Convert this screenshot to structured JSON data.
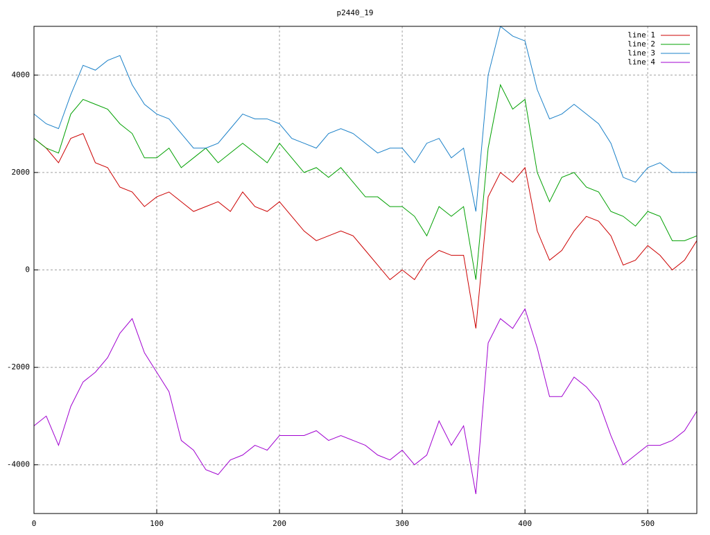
{
  "chart_data": {
    "type": "line",
    "title": "p2440_19",
    "x": [
      0,
      10,
      20,
      30,
      40,
      50,
      60,
      70,
      80,
      90,
      100,
      110,
      120,
      130,
      140,
      150,
      160,
      170,
      180,
      190,
      200,
      210,
      220,
      230,
      240,
      250,
      260,
      270,
      280,
      290,
      300,
      310,
      320,
      330,
      340,
      350,
      360,
      370,
      380,
      390,
      400,
      410,
      420,
      430,
      440,
      450,
      460,
      470,
      480,
      490,
      500,
      510,
      520,
      530,
      540
    ],
    "series": [
      {
        "name": "line 1",
        "color": "#cc0000",
        "values": [
          2700,
          2500,
          2200,
          2700,
          2800,
          2200,
          2100,
          1700,
          1600,
          1300,
          1500,
          1600,
          1400,
          1200,
          1300,
          1400,
          1200,
          1600,
          1300,
          1200,
          1400,
          1100,
          800,
          600,
          700,
          800,
          700,
          400,
          100,
          -200,
          0,
          -200,
          200,
          400,
          300,
          300,
          -1200,
          1500,
          2000,
          1800,
          2100,
          800,
          200,
          400,
          800,
          1100,
          1000,
          700,
          100,
          200,
          500,
          300,
          0,
          200,
          600
        ]
      },
      {
        "name": "line 2",
        "color": "#00a000",
        "values": [
          2700,
          2500,
          2400,
          3200,
          3500,
          3400,
          3300,
          3000,
          2800,
          2300,
          2300,
          2500,
          2100,
          2300,
          2500,
          2200,
          2400,
          2600,
          2400,
          2200,
          2600,
          2300,
          2000,
          2100,
          1900,
          2100,
          1800,
          1500,
          1500,
          1300,
          1300,
          1100,
          700,
          1300,
          1100,
          1300,
          -200,
          2500,
          3800,
          3300,
          3500,
          2000,
          1400,
          1900,
          2000,
          1700,
          1600,
          1200,
          1100,
          900,
          1200,
          1100,
          600,
          600,
          700
        ]
      },
      {
        "name": "line 3",
        "color": "#1a80c8",
        "values": [
          3200,
          3000,
          2900,
          3600,
          4200,
          4100,
          4300,
          4400,
          3800,
          3400,
          3200,
          3100,
          2800,
          2500,
          2500,
          2600,
          2900,
          3200,
          3100,
          3100,
          3000,
          2700,
          2600,
          2500,
          2800,
          2900,
          2800,
          2600,
          2400,
          2500,
          2500,
          2200,
          2600,
          2700,
          2300,
          2500,
          1200,
          4000,
          5000,
          4800,
          4700,
          3700,
          3100,
          3200,
          3400,
          3200,
          3000,
          2600,
          1900,
          1800,
          2100,
          2200,
          2000,
          2000,
          2000
        ]
      },
      {
        "name": "line 4",
        "color": "#a000d0",
        "values": [
          -3200,
          -3000,
          -3600,
          -2800,
          -2300,
          -2100,
          -1800,
          -1300,
          -1000,
          -1700,
          -2100,
          -2500,
          -3500,
          -3700,
          -4100,
          -4200,
          -3900,
          -3800,
          -3600,
          -3700,
          -3400,
          -3400,
          -3400,
          -3300,
          -3500,
          -3400,
          -3500,
          -3600,
          -3800,
          -3900,
          -3700,
          -4000,
          -3800,
          -3100,
          -3600,
          -3200,
          -4600,
          -1500,
          -1000,
          -1200,
          -800,
          -1600,
          -2600,
          -2600,
          -2200,
          -2400,
          -2700,
          -3400,
          -4000,
          -3800,
          -3600,
          -3600,
          -3500,
          -3300,
          -2900
        ]
      }
    ],
    "xlim": [
      0,
      540
    ],
    "ylim": [
      -5000,
      5000
    ],
    "xticks": [
      0,
      100,
      200,
      300,
      400,
      500
    ],
    "yticks": [
      -4000,
      -2000,
      0,
      2000,
      4000
    ],
    "grid": true,
    "legend": "top-right"
  }
}
